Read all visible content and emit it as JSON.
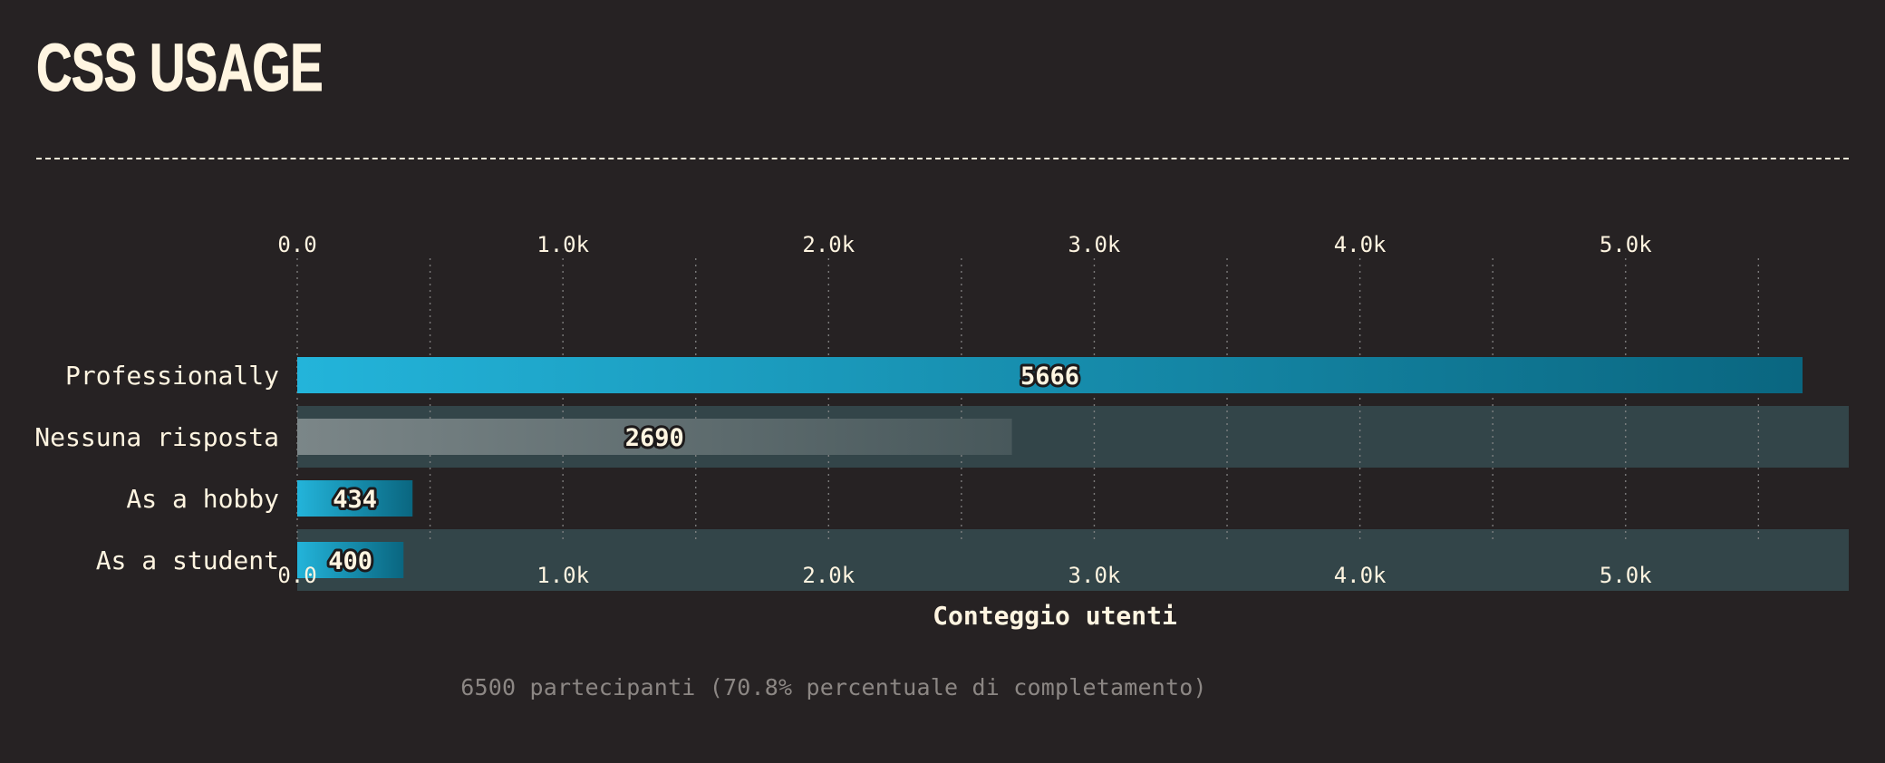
{
  "page": {
    "title": "CSS USAGE",
    "footnote": "6500 partecipanti (70.8% percentuale di completamento)"
  },
  "colors": {
    "background": "#262223",
    "text": "#fff5e1",
    "bar_start": "#23b4da",
    "bar_end": "#0a6680",
    "no_answer_start": "#7b8688",
    "no_answer_end": "#48585b",
    "row_band": "#334549",
    "grid": "#8a8a8a",
    "footnote": "#8c8784"
  },
  "chart_data": {
    "type": "bar",
    "orientation": "horizontal",
    "categories": [
      "Professionally",
      "Nessuna risposta",
      "As a hobby",
      "As a student"
    ],
    "values": [
      5666,
      2690,
      434,
      400
    ],
    "data_labels": [
      "5666",
      "2690",
      "434",
      "400"
    ],
    "highlighted_rows": [
      false,
      true,
      false,
      true
    ],
    "xlabel": "Conteggio utenti",
    "ylabel": "",
    "xlim": [
      0,
      5840
    ],
    "x_ticks": [
      0,
      1000,
      2000,
      3000,
      4000,
      5000
    ],
    "x_tick_labels": [
      "0.0",
      "1.0k",
      "2.0k",
      "3.0k",
      "4.0k",
      "5.0k"
    ],
    "minor_grid_ticks": [
      500,
      1500,
      2500,
      3500,
      4500,
      5500
    ],
    "grid": true,
    "axis_position": "top-and-bottom"
  }
}
